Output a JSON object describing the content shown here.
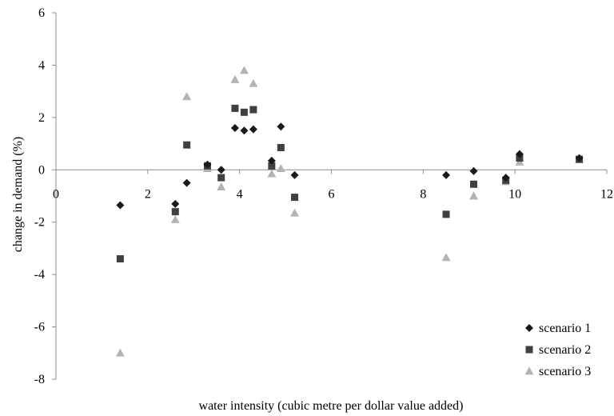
{
  "chart_data": {
    "type": "scatter",
    "xlabel": "water intensity (cubic metre per dollar value added)",
    "ylabel": "change in demand (%)",
    "xlim": [
      0,
      12
    ],
    "ylim": [
      -8,
      6
    ],
    "x_ticks": [
      "0",
      "2",
      "4",
      "6",
      "8",
      "10",
      "12"
    ],
    "y_ticks": [
      "6",
      "4",
      "2",
      "0",
      "-2",
      "-4",
      "-6",
      "-8"
    ],
    "grid": false,
    "legend_position": "bottom-right",
    "series": [
      {
        "name": "scenario 1",
        "marker": "diamond",
        "color": "#1a1a1a",
        "points": [
          [
            1.4,
            -1.35
          ],
          [
            2.6,
            -1.3
          ],
          [
            2.85,
            -0.5
          ],
          [
            3.3,
            0.2
          ],
          [
            3.6,
            0.0
          ],
          [
            3.9,
            1.6
          ],
          [
            4.1,
            1.5
          ],
          [
            4.3,
            1.55
          ],
          [
            4.7,
            0.35
          ],
          [
            4.9,
            1.65
          ],
          [
            5.2,
            -0.2
          ],
          [
            8.5,
            -0.2
          ],
          [
            9.1,
            -0.05
          ],
          [
            9.8,
            -0.3
          ],
          [
            10.1,
            0.6
          ],
          [
            11.4,
            0.45
          ]
        ]
      },
      {
        "name": "scenario 2",
        "marker": "square",
        "color": "#404040",
        "points": [
          [
            1.4,
            -3.4
          ],
          [
            2.6,
            -1.6
          ],
          [
            2.85,
            0.95
          ],
          [
            3.3,
            0.15
          ],
          [
            3.6,
            -0.3
          ],
          [
            3.9,
            2.35
          ],
          [
            4.1,
            2.2
          ],
          [
            4.3,
            2.3
          ],
          [
            4.7,
            0.15
          ],
          [
            4.9,
            0.85
          ],
          [
            5.2,
            -1.05
          ],
          [
            8.5,
            -1.7
          ],
          [
            9.1,
            -0.55
          ],
          [
            9.8,
            -0.4
          ],
          [
            10.1,
            0.45
          ],
          [
            11.4,
            0.4
          ]
        ]
      },
      {
        "name": "scenario 3",
        "marker": "triangle",
        "color": "#b3b3b3",
        "points": [
          [
            1.4,
            -7.0
          ],
          [
            2.6,
            -1.9
          ],
          [
            2.85,
            2.8
          ],
          [
            3.3,
            0.05
          ],
          [
            3.6,
            -0.65
          ],
          [
            3.9,
            3.45
          ],
          [
            4.1,
            3.8
          ],
          [
            4.3,
            3.3
          ],
          [
            4.7,
            -0.15
          ],
          [
            4.9,
            0.05
          ],
          [
            5.2,
            -1.65
          ],
          [
            8.5,
            -3.35
          ],
          [
            9.1,
            -1.0
          ],
          [
            9.8,
            -0.45
          ],
          [
            10.1,
            0.3
          ],
          [
            11.4,
            0.4
          ]
        ]
      }
    ]
  }
}
